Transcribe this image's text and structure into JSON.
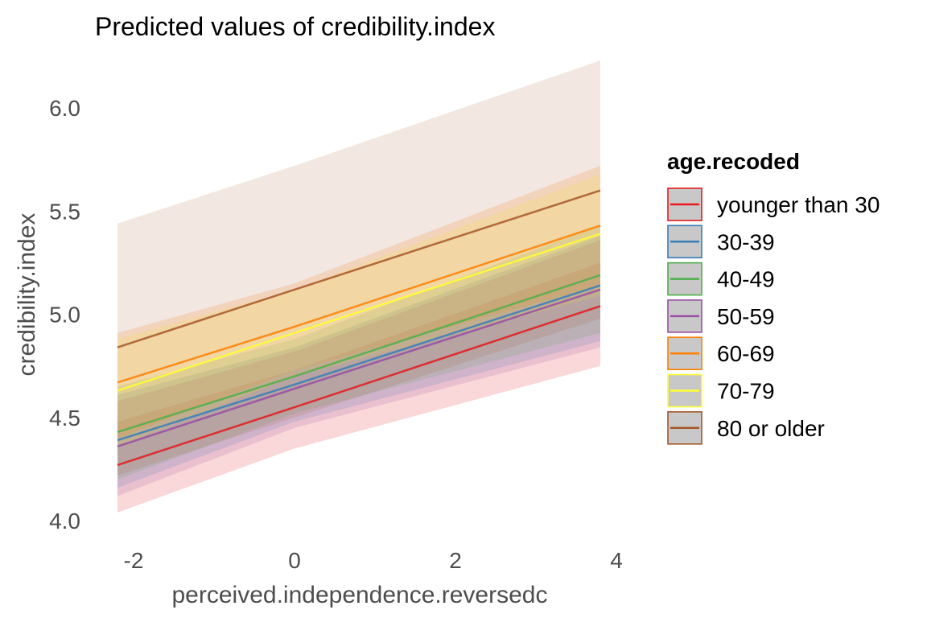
{
  "chart_data": {
    "type": "line",
    "title": "Predicted values of credibility.index",
    "xlabel": "perceived.independence.reversedc",
    "ylabel": "credibility.index",
    "xlim": [
      -2.5,
      4.2
    ],
    "ylim": [
      3.95,
      6.25
    ],
    "xticks": [
      -2,
      0,
      2,
      4
    ],
    "yticks": [
      "4.0",
      "4.5",
      "5.0",
      "5.5",
      "6.0"
    ],
    "grid": false,
    "legend": {
      "title": "age.recoded",
      "position": "right"
    },
    "x": [
      -2.2,
      0,
      3.8
    ],
    "series": [
      {
        "name": "younger than 30",
        "color": "#E41A1C",
        "values": [
          4.27,
          4.55,
          5.04
        ],
        "lower": [
          4.04,
          4.35,
          4.75
        ],
        "upper": [
          4.48,
          4.73,
          5.25
        ]
      },
      {
        "name": "30-39",
        "color": "#377EB8",
        "values": [
          4.39,
          4.66,
          5.14
        ],
        "lower": [
          4.16,
          4.48,
          4.87
        ],
        "upper": [
          4.61,
          4.84,
          5.38
        ]
      },
      {
        "name": "40-49",
        "color": "#4DAF4A",
        "values": [
          4.43,
          4.7,
          5.19
        ],
        "lower": [
          4.2,
          4.52,
          4.91
        ],
        "upper": [
          4.65,
          4.88,
          5.43
        ]
      },
      {
        "name": "50-59",
        "color": "#984EA3",
        "values": [
          4.36,
          4.64,
          5.12
        ],
        "lower": [
          4.12,
          4.45,
          4.84
        ],
        "upper": [
          4.58,
          4.82,
          5.36
        ]
      },
      {
        "name": "60-69",
        "color": "#FF7F00",
        "values": [
          4.67,
          4.94,
          5.43
        ],
        "lower": [
          4.4,
          4.73,
          5.14
        ],
        "upper": [
          4.91,
          5.15,
          5.72
        ]
      },
      {
        "name": "70-79",
        "color": "#FFFF33",
        "values": [
          4.63,
          4.91,
          5.39
        ],
        "lower": [
          4.36,
          4.7,
          5.09
        ],
        "upper": [
          4.88,
          5.12,
          5.68
        ]
      },
      {
        "name": "80 or older",
        "color": "#A65628",
        "values": [
          4.84,
          5.12,
          5.6
        ],
        "lower": [
          4.22,
          4.5,
          4.98
        ],
        "upper": [
          5.44,
          5.72,
          6.23
        ]
      }
    ]
  }
}
